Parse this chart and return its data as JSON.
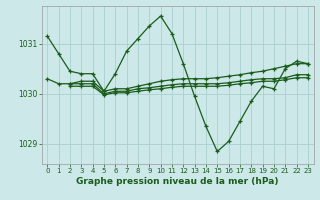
{
  "background_color": "#cce8e8",
  "grid_color": "#aad0d0",
  "line_color": "#1a5c1a",
  "xlabel": "Graphe pression niveau de la mer (hPa)",
  "xlabel_fontsize": 6.5,
  "ylim": [
    1028.6,
    1031.75
  ],
  "xlim": [
    -0.5,
    23.5
  ],
  "yticks": [
    1029,
    1030,
    1031
  ],
  "xticks": [
    0,
    1,
    2,
    3,
    4,
    5,
    6,
    7,
    8,
    9,
    10,
    11,
    12,
    13,
    14,
    15,
    16,
    17,
    18,
    19,
    20,
    21,
    22,
    23
  ],
  "series1_x": [
    0,
    1,
    2,
    3,
    4,
    5,
    6,
    7,
    8,
    9,
    10,
    11,
    12,
    13,
    14,
    15,
    16,
    17,
    18,
    19,
    20,
    21,
    22,
    23
  ],
  "series1_y": [
    1031.15,
    1030.8,
    1030.45,
    1030.4,
    1030.4,
    1030.05,
    1030.4,
    1030.85,
    1031.1,
    1031.35,
    1031.55,
    1031.2,
    1030.6,
    1029.95,
    1029.35,
    1028.85,
    1029.05,
    1029.45,
    1029.85,
    1030.15,
    1030.1,
    1030.5,
    1030.65,
    1030.6
  ],
  "series2_x": [
    0,
    1,
    2,
    3,
    4,
    5,
    6,
    7,
    8,
    9,
    10,
    11,
    12,
    13,
    14,
    15,
    16,
    17,
    18,
    19,
    20,
    21,
    22,
    23
  ],
  "series2_y": [
    1030.3,
    1030.2,
    1030.2,
    1030.25,
    1030.25,
    1030.05,
    1030.1,
    1030.1,
    1030.15,
    1030.2,
    1030.25,
    1030.28,
    1030.3,
    1030.3,
    1030.3,
    1030.32,
    1030.35,
    1030.38,
    1030.42,
    1030.45,
    1030.5,
    1030.55,
    1030.6,
    1030.6
  ],
  "series3_x": [
    2,
    3,
    4,
    5,
    6,
    7,
    8,
    9,
    10,
    11,
    12,
    13,
    14,
    15,
    16,
    17,
    18,
    19,
    20,
    21,
    22,
    23
  ],
  "series3_y": [
    1030.2,
    1030.2,
    1030.2,
    1030.0,
    1030.05,
    1030.05,
    1030.1,
    1030.12,
    1030.15,
    1030.18,
    1030.2,
    1030.2,
    1030.2,
    1030.2,
    1030.22,
    1030.25,
    1030.28,
    1030.3,
    1030.3,
    1030.32,
    1030.38,
    1030.38
  ],
  "series4_x": [
    2,
    3,
    4,
    5,
    6,
    7,
    8,
    9,
    10,
    11,
    12,
    13,
    14,
    15,
    16,
    17,
    18,
    19,
    20,
    21,
    22,
    23
  ],
  "series4_y": [
    1030.15,
    1030.15,
    1030.15,
    1029.98,
    1030.02,
    1030.02,
    1030.05,
    1030.08,
    1030.1,
    1030.13,
    1030.15,
    1030.15,
    1030.15,
    1030.15,
    1030.17,
    1030.2,
    1030.22,
    1030.25,
    1030.25,
    1030.28,
    1030.32,
    1030.32
  ]
}
